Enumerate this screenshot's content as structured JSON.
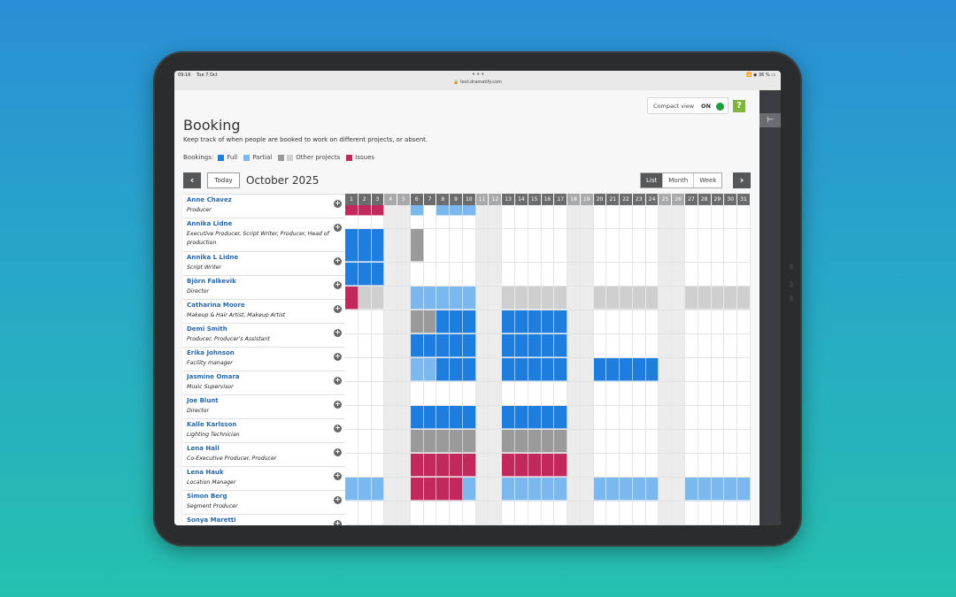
{
  "statusbar": {
    "time": "09:16",
    "date": "Tue 7 Oct",
    "url": "test.dramatify.com",
    "battery": "36 %"
  },
  "compact_view": {
    "label": "Compact view",
    "state": "ON"
  },
  "help_label": "?",
  "page": {
    "title": "Booking",
    "subtitle": "Keep track of when people are booked to work on different projects, or absent."
  },
  "legend": {
    "label": "Bookings:",
    "items": [
      {
        "label": "Full",
        "colors": [
          "#1d7ee0"
        ]
      },
      {
        "label": "Partial",
        "colors": [
          "#7ab8ee"
        ]
      },
      {
        "label": "Other projects",
        "colors": [
          "#9a9a9a",
          "#cfcfcf"
        ]
      },
      {
        "label": "Issues",
        "colors": [
          "#c2285c"
        ]
      }
    ]
  },
  "nav": {
    "prev": "‹",
    "next": "›",
    "today": "Today",
    "month": "October 2025",
    "views": [
      "List",
      "Month",
      "Week"
    ],
    "active_view": "List"
  },
  "colors": {
    "F": "#1d7ee0",
    "P": "#7ab8ee",
    "O": "#9a9a9a",
    "L": "#cfcfcf",
    "I": "#c2285c"
  },
  "days": [
    1,
    2,
    3,
    4,
    5,
    6,
    7,
    8,
    9,
    10,
    11,
    12,
    13,
    14,
    15,
    16,
    17,
    18,
    19,
    20,
    21,
    22,
    23,
    24,
    25,
    26,
    27,
    28,
    29,
    30,
    31
  ],
  "weekend_days": [
    4,
    5,
    11,
    12,
    18,
    19,
    25,
    26
  ],
  "people": [
    {
      "name": "Anne Chavez",
      "role": "Producer",
      "bookings": [
        {
          "type": "I",
          "from": 1,
          "to": 3,
          "part": "top"
        },
        {
          "type": "P",
          "from": 6,
          "to": 6,
          "part": "top"
        },
        {
          "type": "P",
          "from": 8,
          "to": 10,
          "part": "top"
        }
      ]
    },
    {
      "name": "Annika Lidne",
      "role": "Executive Producer, Script Writer, Producer, Head of production",
      "bookings": [
        {
          "type": "F",
          "from": 1,
          "to": 3
        },
        {
          "type": "O",
          "from": 6,
          "to": 6
        }
      ]
    },
    {
      "name": "Annika L Lidne",
      "role": "Script Writer",
      "bookings": [
        {
          "type": "F",
          "from": 1,
          "to": 3
        }
      ]
    },
    {
      "name": "Björn Falkevik",
      "role": "Director",
      "bookings": [
        {
          "type": "I",
          "from": 1,
          "to": 1
        },
        {
          "type": "L",
          "from": 2,
          "to": 3
        },
        {
          "type": "P",
          "from": 6,
          "to": 10
        },
        {
          "type": "L",
          "from": 13,
          "to": 17
        },
        {
          "type": "L",
          "from": 20,
          "to": 24
        },
        {
          "type": "L",
          "from": 27,
          "to": 31
        }
      ]
    },
    {
      "name": "Catharina Moore",
      "role": "Makeup & Hair Artist, Makeup Artist",
      "bookings": [
        {
          "type": "O",
          "from": 6,
          "to": 7
        },
        {
          "type": "F",
          "from": 8,
          "to": 10
        },
        {
          "type": "F",
          "from": 13,
          "to": 17
        }
      ]
    },
    {
      "name": "Demi Smith",
      "role": "Producer, Producer's Assistant",
      "bookings": [
        {
          "type": "F",
          "from": 6,
          "to": 10
        },
        {
          "type": "F",
          "from": 13,
          "to": 17
        }
      ]
    },
    {
      "name": "Erika Johnson",
      "role": "Facility manager",
      "bookings": [
        {
          "type": "P",
          "from": 6,
          "to": 7
        },
        {
          "type": "F",
          "from": 8,
          "to": 10
        },
        {
          "type": "F",
          "from": 13,
          "to": 17
        },
        {
          "type": "F",
          "from": 20,
          "to": 24
        }
      ]
    },
    {
      "name": "Jasmine Omara",
      "role": "Music Supervisor",
      "bookings": []
    },
    {
      "name": "Joe Blunt",
      "role": "Director",
      "bookings": [
        {
          "type": "F",
          "from": 6,
          "to": 10
        },
        {
          "type": "F",
          "from": 13,
          "to": 17
        }
      ]
    },
    {
      "name": "Kalle Karlsson",
      "role": "Lighting Technician",
      "bookings": [
        {
          "type": "O",
          "from": 6,
          "to": 10
        },
        {
          "type": "O",
          "from": 13,
          "to": 17
        }
      ]
    },
    {
      "name": "Lena Hall",
      "role": "Co-Executive Producer, Producer",
      "bookings": [
        {
          "type": "I",
          "from": 6,
          "to": 10
        },
        {
          "type": "I",
          "from": 13,
          "to": 17
        }
      ]
    },
    {
      "name": "Lena Hauk",
      "role": "Location Manager",
      "bookings": [
        {
          "type": "P",
          "from": 1,
          "to": 3
        },
        {
          "type": "I",
          "from": 6,
          "to": 9
        },
        {
          "type": "P",
          "from": 10,
          "to": 10
        },
        {
          "type": "P",
          "from": 13,
          "to": 17
        },
        {
          "type": "P",
          "from": 20,
          "to": 24
        },
        {
          "type": "P",
          "from": 27,
          "to": 31
        }
      ]
    },
    {
      "name": "Simon Berg",
      "role": "Segment Producer",
      "bookings": []
    },
    {
      "name": "Sonya Maretti",
      "role": "",
      "bookings": []
    }
  ]
}
